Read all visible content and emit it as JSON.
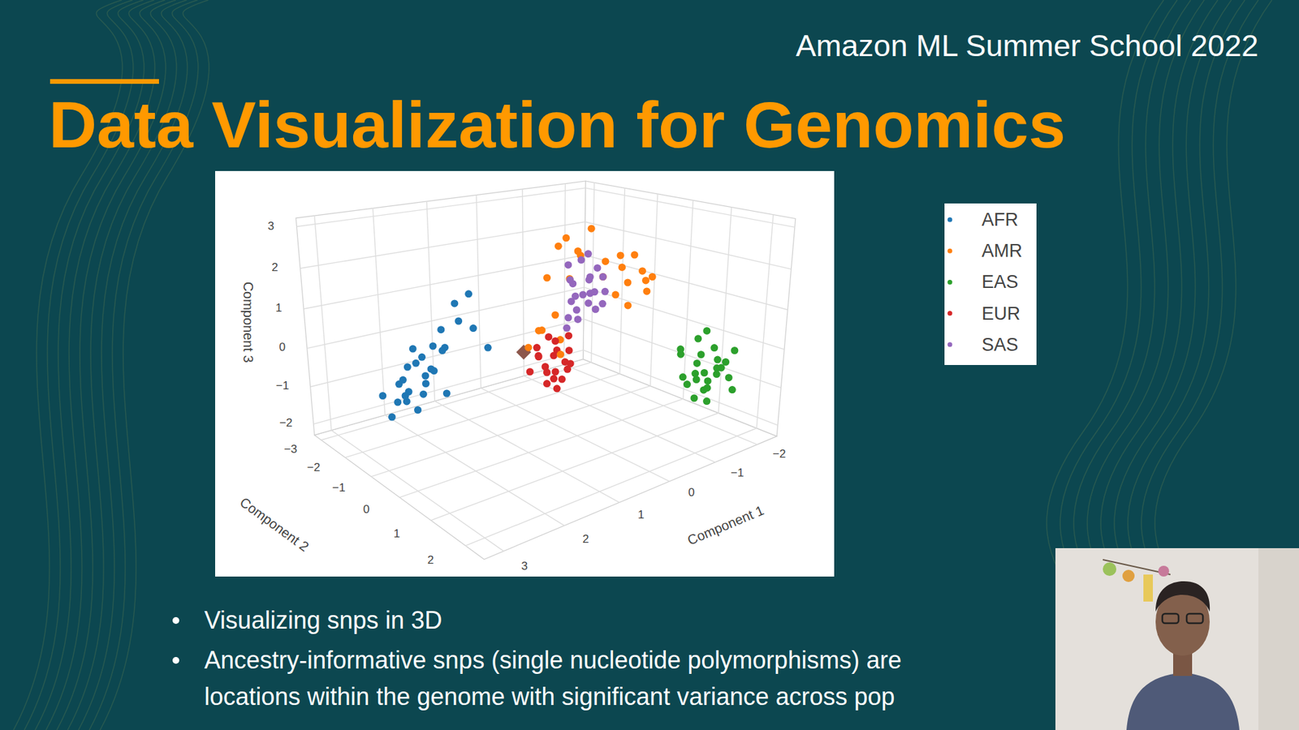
{
  "slide": {
    "header": "Amazon ML Summer School 2022",
    "title": "Data Visualization for Genomics",
    "bullets": [
      {
        "lines": [
          "Visualizing snps in 3D"
        ]
      },
      {
        "lines": [
          "Ancestry-informative snps (single nucleotide polymorphisms) are",
          "locations within the genome with significant variance across pop"
        ]
      }
    ]
  },
  "chart_data": {
    "type": "scatter3d",
    "xlabel": "Component 1",
    "ylabel": "Component 2",
    "zlabel": "Component 3",
    "xlim": [
      -2.5,
      3.3
    ],
    "ylim": [
      -3.3,
      2.5
    ],
    "zlim": [
      -2.3,
      3.2
    ],
    "xticks": [
      {
        "value": -2,
        "label": "−2"
      },
      {
        "value": -1,
        "label": "−1"
      },
      0,
      1,
      2,
      3
    ],
    "yticks": [
      {
        "value": -3,
        "label": "−3"
      },
      {
        "value": -2,
        "label": "−2"
      },
      {
        "value": -1,
        "label": "−1"
      },
      0,
      1,
      2
    ],
    "zticks": [
      {
        "value": -2,
        "label": "−2"
      },
      {
        "value": -1,
        "label": "−1"
      },
      0,
      1,
      2,
      3
    ],
    "grid": true,
    "legend": "right",
    "marker": "circle",
    "series": [
      {
        "name": "AFR",
        "color": "#1f77b4",
        "x": [
          2.6,
          2.4,
          2.7,
          2.5,
          2.8,
          2.3,
          2.6,
          2.9,
          2.2,
          2.5,
          2.7,
          2.4,
          2.1,
          2.0,
          1.9,
          1.8,
          1.7,
          2.3,
          2.6,
          2.8,
          2.5,
          2.2,
          1.6,
          2.0,
          2.9,
          2.4,
          1.5,
          2.1
        ],
        "y": [
          -1.0,
          -0.8,
          -1.2,
          -0.6,
          -0.9,
          -1.1,
          -0.7,
          -1.3,
          -0.9,
          -1.4,
          -0.5,
          -1.2,
          -0.7,
          -1.0,
          -0.6,
          -0.9,
          -0.5,
          -0.4,
          -1.0,
          -0.7,
          -1.3,
          -0.5,
          -0.8,
          -1.3,
          -1.0,
          -0.9,
          -0.4,
          -1.2
        ],
        "z": [
          -0.5,
          -0.3,
          -0.8,
          0.0,
          -0.2,
          0.2,
          0.3,
          -0.6,
          -0.1,
          -0.4,
          -0.7,
          0.4,
          0.5,
          0.8,
          1.1,
          1.4,
          0.9,
          0.6,
          0.1,
          -0.4,
          -0.9,
          -0.5,
          1.6,
          0.3,
          -1.0,
          -0.6,
          0.4,
          -0.2
        ]
      },
      {
        "name": "AMR",
        "color": "#ff7f0e",
        "x": [
          -0.8,
          -1.2,
          -1.4,
          -1.0,
          -0.6,
          -0.4,
          -1.3,
          -1.6,
          -0.9,
          -0.2,
          -1.1,
          0.2,
          0.4,
          0.3,
          0.6,
          -0.3,
          -1.5,
          -0.7,
          0.1,
          -1.2,
          0.5,
          -0.5,
          0.8,
          -1.7,
          -0.9
        ],
        "y": [
          -0.4,
          -0.2,
          0.1,
          -0.6,
          -0.8,
          -0.6,
          -0.5,
          0.0,
          0.2,
          -0.9,
          -0.3,
          -0.4,
          -0.6,
          -0.1,
          -0.2,
          -0.7,
          -0.4,
          0.1,
          -0.8,
          0.2,
          0.2,
          -1.1,
          -0.3,
          -0.3,
          -0.9
        ],
        "z": [
          1.5,
          1.3,
          1.1,
          1.8,
          2.0,
          2.2,
          1.6,
          1.4,
          0.9,
          2.3,
          2.0,
          0.8,
          0.4,
          0.3,
          0.6,
          1.5,
          1.9,
          1.2,
          1.6,
          1.7,
          0.1,
          2.4,
          0.2,
          1.2,
          2.6
        ]
      },
      {
        "name": "EAS",
        "color": "#2ca02c",
        "x": [
          -1.4,
          -1.6,
          -1.2,
          -1.5,
          -1.3,
          -1.7,
          -1.1,
          -1.5,
          -1.2,
          -1.8,
          -1.4,
          -1.0,
          -1.6,
          -1.3,
          -1.9,
          -1.4,
          -1.1,
          -1.7,
          -1.5,
          -1.2,
          -1.6,
          -1.3,
          -2.0,
          -1.0,
          -1.5
        ],
        "y": [
          1.7,
          1.8,
          1.5,
          1.4,
          1.9,
          1.6,
          1.8,
          2.0,
          1.3,
          1.9,
          1.5,
          1.6,
          1.3,
          2.1,
          1.7,
          1.8,
          1.4,
          2.1,
          1.6,
          2.0,
          1.5,
          1.7,
          1.8,
          1.9,
          1.9
        ],
        "z": [
          -0.5,
          -0.2,
          -0.8,
          -0.4,
          -0.6,
          0.0,
          -1.0,
          -0.3,
          -0.1,
          -0.7,
          0.3,
          -0.5,
          -0.9,
          -0.2,
          -0.4,
          -1.2,
          0.1,
          -0.9,
          0.5,
          -0.7,
          -1.1,
          0.0,
          -0.1,
          -0.3,
          -0.5
        ]
      },
      {
        "name": "EUR",
        "color": "#d62728",
        "x": [
          0.5,
          0.6,
          0.4,
          0.7,
          0.3,
          0.5,
          0.8,
          0.4,
          0.6,
          0.2,
          0.7,
          0.5,
          0.3,
          0.9,
          0.6,
          0.4,
          0.8,
          0.2,
          0.5,
          0.7
        ],
        "y": [
          0.0,
          0.2,
          -0.1,
          0.1,
          0.2,
          -0.2,
          0.0,
          0.3,
          -0.3,
          0.0,
          0.3,
          0.1,
          -0.2,
          -0.1,
          0.0,
          0.1,
          0.2,
          -0.1,
          0.4,
          -0.2
        ],
        "z": [
          0.0,
          -0.3,
          0.3,
          -0.6,
          -0.2,
          -0.5,
          0.1,
          0.2,
          -0.1,
          0.4,
          -0.4,
          -0.8,
          0.0,
          -0.3,
          0.5,
          -0.6,
          -0.1,
          -0.3,
          -0.2,
          0.2
        ]
      },
      {
        "name": "SAS",
        "color": "#9467bd",
        "x": [
          -0.3,
          -0.1,
          -0.5,
          -0.2,
          -0.4,
          0.0,
          -0.6,
          -0.3,
          -0.2,
          -0.5,
          -0.1,
          -0.4,
          -0.7,
          0.1,
          -0.3,
          -0.2,
          -0.6,
          -0.4,
          0.0,
          -0.5,
          -0.8,
          -0.2
        ],
        "y": [
          -0.3,
          -0.2,
          -0.4,
          -0.5,
          -0.1,
          -0.3,
          -0.3,
          -0.6,
          0.0,
          -0.2,
          -0.4,
          -0.5,
          -0.2,
          -0.2,
          -0.1,
          -0.3,
          -0.5,
          -0.3,
          -0.1,
          0.0,
          -0.4,
          -0.6
        ],
        "z": [
          1.2,
          0.9,
          1.5,
          1.0,
          1.3,
          0.7,
          1.8,
          1.4,
          1.1,
          0.8,
          1.6,
          2.0,
          1.2,
          0.5,
          1.7,
          0.6,
          1.1,
          2.2,
          1.3,
          1.0,
          1.5,
          1.9
        ]
      },
      {
        "color": "#8c564b",
        "marker": "diamond",
        "x": [
          0.76
        ],
        "y": [
          -0.51
        ],
        "z": [
          0
        ]
      }
    ]
  }
}
